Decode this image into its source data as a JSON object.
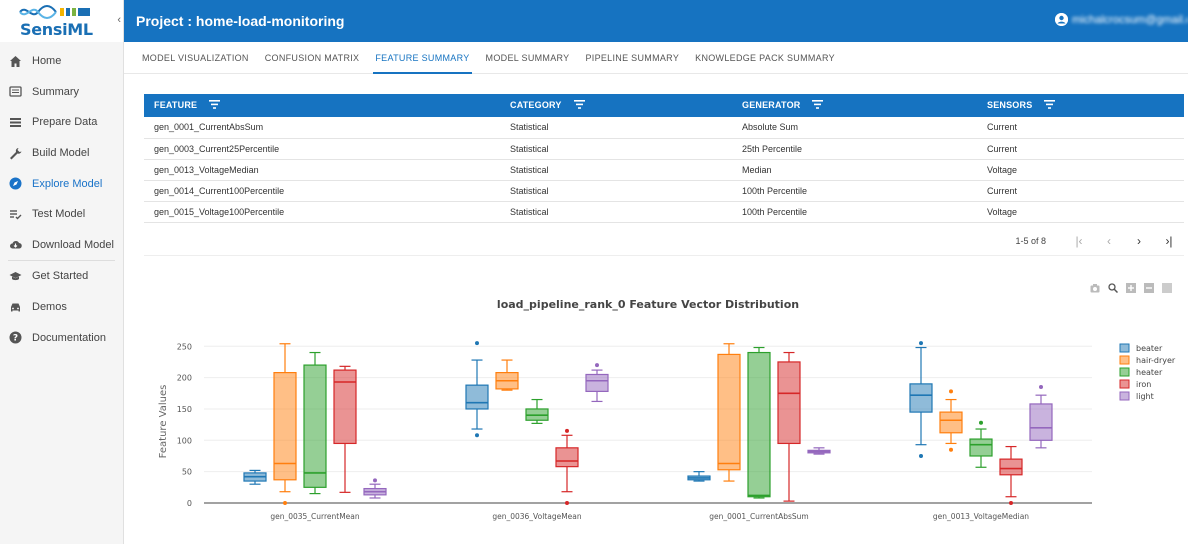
{
  "app": {
    "logo_text": "SensiML",
    "collapse_glyph": "‹"
  },
  "sidebar": {
    "items": [
      {
        "label": "Home",
        "icon": "home-icon"
      },
      {
        "label": "Summary",
        "icon": "summary-icon"
      },
      {
        "label": "Prepare Data",
        "icon": "list-icon"
      },
      {
        "label": "Build Model",
        "icon": "wrench-icon"
      },
      {
        "label": "Explore Model",
        "icon": "compass-icon",
        "active": true
      },
      {
        "label": "Test Model",
        "icon": "checklist-icon"
      },
      {
        "label": "Download Model",
        "icon": "cloud-download-icon"
      },
      {
        "label": "Get Started",
        "icon": "graduation-cap-icon"
      },
      {
        "label": "Demos",
        "icon": "car-icon"
      },
      {
        "label": "Documentation",
        "icon": "help-icon"
      }
    ]
  },
  "header": {
    "title": "Project : home-load-monitoring",
    "account_name": "michalcrocsum@gmail.com"
  },
  "tabs": [
    {
      "label": "MODEL VISUALIZATION"
    },
    {
      "label": "CONFUSION MATRIX"
    },
    {
      "label": "FEATURE SUMMARY",
      "active": true
    },
    {
      "label": "MODEL SUMMARY"
    },
    {
      "label": "PIPELINE SUMMARY"
    },
    {
      "label": "KNOWLEDGE PACK SUMMARY"
    }
  ],
  "table": {
    "columns": [
      "FEATURE",
      "CATEGORY",
      "GENERATOR",
      "SENSORS"
    ],
    "rows": [
      [
        "gen_0001_CurrentAbsSum",
        "Statistical",
        "Absolute Sum",
        "Current"
      ],
      [
        "gen_0003_Current25Percentile",
        "Statistical",
        "25th Percentile",
        "Current"
      ],
      [
        "gen_0013_VoltageMedian",
        "Statistical",
        "Median",
        "Voltage"
      ],
      [
        "gen_0014_Current100Percentile",
        "Statistical",
        "100th Percentile",
        "Current"
      ],
      [
        "gen_0015_Voltage100Percentile",
        "Statistical",
        "100th Percentile",
        "Voltage"
      ]
    ],
    "pagination": "1-5 of 8"
  },
  "colors": {
    "primary": "#1673c1",
    "beater": "#1f77b4",
    "hair-dryer": "#ff7f0e",
    "heater": "#2ca02c",
    "iron": "#d62728",
    "light": "#9467bd"
  },
  "chart_data": {
    "type": "box",
    "title": "load_pipeline_rank_0 Feature Vector Distribution",
    "ylabel": "Feature Values",
    "ylim": [
      0,
      260
    ],
    "yticks": [
      0,
      50,
      100,
      150,
      200,
      250
    ],
    "legend_position": "right",
    "categories": [
      "gen_0035_CurrentMean",
      "gen_0036_VoltageMean",
      "gen_0001_CurrentAbsSum",
      "gen_0013_VoltageMedian"
    ],
    "series": [
      {
        "name": "beater",
        "color": "#1f77b4",
        "boxes": [
          {
            "min": 30,
            "q1": 35,
            "median": 42,
            "q3": 48,
            "max": 52,
            "outliers": []
          },
          {
            "min": 118,
            "q1": 150,
            "median": 160,
            "q3": 188,
            "max": 228,
            "outliers": [
              108,
              255
            ]
          },
          {
            "min": 35,
            "q1": 37,
            "median": 40,
            "q3": 43,
            "max": 50,
            "outliers": []
          },
          {
            "min": 93,
            "q1": 145,
            "median": 172,
            "q3": 190,
            "max": 248,
            "outliers": [
              75,
              255
            ]
          }
        ]
      },
      {
        "name": "hair-dryer",
        "color": "#ff7f0e",
        "boxes": [
          {
            "min": 18,
            "q1": 37,
            "median": 63,
            "q3": 208,
            "max": 254,
            "outliers": [
              0
            ]
          },
          {
            "min": 180,
            "q1": 182,
            "median": 195,
            "q3": 208,
            "max": 228,
            "outliers": []
          },
          {
            "min": 35,
            "q1": 53,
            "median": 63,
            "q3": 237,
            "max": 254,
            "outliers": []
          },
          {
            "min": 95,
            "q1": 112,
            "median": 132,
            "q3": 145,
            "max": 165,
            "outliers": [
              85,
              178
            ]
          }
        ]
      },
      {
        "name": "heater",
        "color": "#2ca02c",
        "boxes": [
          {
            "min": 15,
            "q1": 25,
            "median": 48,
            "q3": 220,
            "max": 240,
            "outliers": []
          },
          {
            "min": 127,
            "q1": 132,
            "median": 140,
            "q3": 150,
            "max": 165,
            "outliers": []
          },
          {
            "min": 8,
            "q1": 10,
            "median": 12,
            "q3": 240,
            "max": 248,
            "outliers": []
          },
          {
            "min": 57,
            "q1": 75,
            "median": 93,
            "q3": 102,
            "max": 118,
            "outliers": [
              128
            ]
          }
        ]
      },
      {
        "name": "iron",
        "color": "#d62728",
        "boxes": [
          {
            "min": 17,
            "q1": 95,
            "median": 193,
            "q3": 212,
            "max": 218,
            "outliers": []
          },
          {
            "min": 18,
            "q1": 58,
            "median": 67,
            "q3": 88,
            "max": 108,
            "outliers": [
              0,
              115
            ]
          },
          {
            "min": 3,
            "q1": 95,
            "median": 175,
            "q3": 225,
            "max": 240,
            "outliers": []
          },
          {
            "min": 10,
            "q1": 45,
            "median": 55,
            "q3": 70,
            "max": 90,
            "outliers": [
              0
            ]
          }
        ]
      },
      {
        "name": "light",
        "color": "#9467bd",
        "boxes": [
          {
            "min": 8,
            "q1": 13,
            "median": 18,
            "q3": 23,
            "max": 30,
            "outliers": [
              36
            ]
          },
          {
            "min": 162,
            "q1": 178,
            "median": 195,
            "q3": 205,
            "max": 212,
            "outliers": [
              220
            ]
          },
          {
            "min": 78,
            "q1": 80,
            "median": 82,
            "q3": 84,
            "max": 88,
            "outliers": []
          },
          {
            "min": 88,
            "q1": 100,
            "median": 120,
            "q3": 158,
            "max": 172,
            "outliers": [
              185
            ]
          }
        ]
      }
    ]
  }
}
